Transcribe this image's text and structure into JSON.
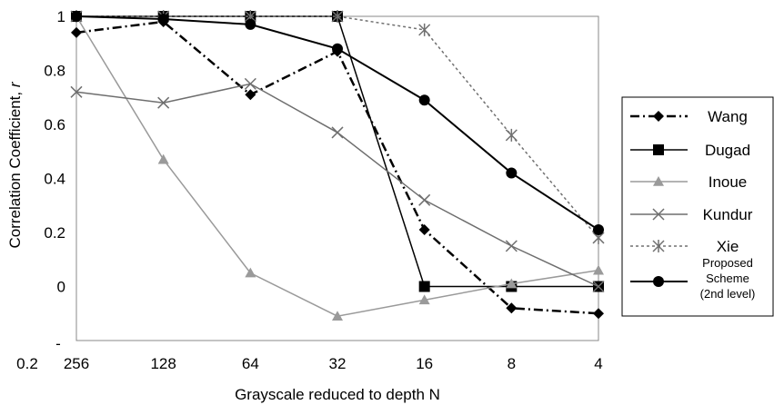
{
  "chart_data": {
    "type": "line",
    "xlabel": "Grayscale reduced to depth N",
    "ylabel_main": "Correlation Coefficient, ",
    "ylabel_var": "r",
    "categories": [
      "256",
      "128",
      "64",
      "32",
      "16",
      "8",
      "4"
    ],
    "ylim": [
      -0.2,
      1
    ],
    "yticks": [
      1,
      0.8,
      0.6,
      0.4,
      0.2,
      0
    ],
    "ytick_labels": [
      "1",
      "0.8",
      "0.6",
      "0.4",
      "0.2",
      "0"
    ],
    "ymin_label_parts": [
      "-",
      "0.2"
    ],
    "grid": false,
    "legend_position": "right",
    "series": [
      {
        "name": "Wang",
        "marker": "diamond",
        "color": "#000000",
        "dash": "10,4,2,4",
        "width": 2.5,
        "values": [
          0.94,
          0.98,
          0.71,
          0.87,
          0.21,
          -0.08,
          -0.1
        ]
      },
      {
        "name": "Dugad",
        "marker": "square",
        "color": "#000000",
        "dash": "",
        "width": 1.5,
        "values": [
          1.0,
          1.0,
          1.0,
          1.0,
          0.0,
          0.0,
          0.0
        ]
      },
      {
        "name": "Inoue",
        "marker": "triangle",
        "color": "#9a9a9a",
        "dash": "",
        "width": 1.5,
        "values": [
          1.0,
          0.47,
          0.05,
          -0.11,
          -0.05,
          0.01,
          0.06
        ]
      },
      {
        "name": "Kundur",
        "marker": "x",
        "color": "#6e6e6e",
        "dash": "",
        "width": 1.5,
        "values": [
          0.72,
          0.68,
          0.75,
          0.57,
          0.32,
          0.15,
          0.0
        ]
      },
      {
        "name": "Xie",
        "marker": "asterisk",
        "color": "#707070",
        "dash": "3,3",
        "width": 1.5,
        "values": [
          1.0,
          1.0,
          1.0,
          1.0,
          0.95,
          0.56,
          0.18
        ]
      },
      {
        "name": "Proposed Scheme (2nd level)",
        "label_lines": [
          "Proposed",
          "Scheme",
          "(2nd level)"
        ],
        "marker": "circle",
        "color": "#000000",
        "dash": "",
        "width": 2,
        "values": [
          1.0,
          0.99,
          0.97,
          0.88,
          0.69,
          0.42,
          0.21
        ]
      }
    ]
  }
}
